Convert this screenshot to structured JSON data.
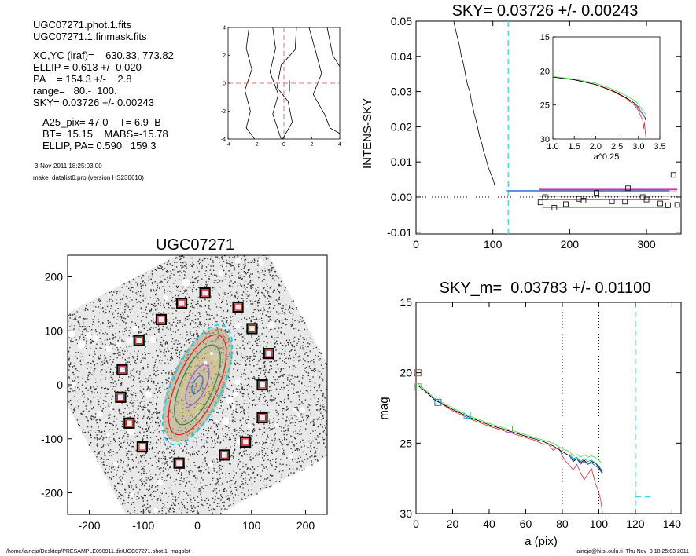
{
  "header": {
    "lines_a": [
      "UGC07271.phot.1.fits",
      "UGC07271.1.finmask.fits"
    ],
    "lines_b": [
      "XC,YC (iraf)=    630.33, 773.82",
      "ELLIP = 0.613 +/- 0.020",
      "PA    = 154.3 +/-    2.8",
      "range=   80.-  100.",
      "SKY= 0.03726 +/- 0.00243"
    ],
    "lines_c": [
      "A25_pix= 47.0    T= 6.9  B",
      "BT=  15.15    MABS=-15.78",
      "ELLIP, PA= 0.590   159.3"
    ],
    "date": "3-Nov-2011 18:25:03.00",
    "program": "make_datalist0.pro (version HS230610)"
  },
  "footer": {
    "left": "/home/laineja/Desktop/PRESAMPLE090911.dir/UGC07271.phot.1_magplot",
    "right": "laineja@hiisi.oulu.fi  Thu Nov  3 18:25:03 2011"
  },
  "chart_data": [
    {
      "type": "line",
      "panel": "center-contour",
      "xlim": [
        -4,
        4
      ],
      "ylim": [
        -4,
        4
      ],
      "x_ticks": [
        -4,
        -2,
        0,
        2,
        4
      ],
      "y_ticks": [
        -4,
        -2,
        0,
        2,
        4
      ],
      "crosshair": [
        0,
        0
      ],
      "center_marker": [
        0.4,
        -0.2
      ],
      "contours": [
        [
          [
            -2.5,
            4
          ],
          [
            -2.7,
            2.5
          ],
          [
            -2.3,
            1
          ],
          [
            -2.8,
            -0.5
          ],
          [
            -2.4,
            -2
          ],
          [
            -2.7,
            -3.2
          ],
          [
            -2.1,
            -4
          ]
        ],
        [
          [
            -0.8,
            4
          ],
          [
            -0.6,
            2.5
          ],
          [
            -1.0,
            0.8
          ],
          [
            -0.4,
            -0.8
          ],
          [
            -0.8,
            -2.2
          ],
          [
            -0.2,
            -4
          ]
        ],
        [
          [
            0.9,
            4
          ],
          [
            0.8,
            2.4
          ],
          [
            -0.2,
            1.3
          ],
          [
            -0.5,
            -0.3
          ],
          [
            0.3,
            -1.3
          ],
          [
            0.6,
            -2.8
          ],
          [
            -0.1,
            -4
          ]
        ],
        [
          [
            1.8,
            4
          ],
          [
            2.3,
            2.2
          ],
          [
            2.7,
            0.7
          ],
          [
            2.1,
            -0.8
          ],
          [
            2.9,
            -2.2
          ],
          [
            3.3,
            -3.2
          ],
          [
            4,
            -3.6
          ]
        ],
        [
          [
            3.1,
            4
          ],
          [
            3.5,
            2.0
          ],
          [
            4,
            1.2
          ]
        ]
      ],
      "colors": {
        "crosshair": "#e87070",
        "contours": "#000000"
      }
    },
    {
      "type": "line",
      "panel": "sky-profile",
      "title": "SKY= 0.03726 +/- 0.00243",
      "xlabel": "",
      "ylabel": "INTENS-SKY",
      "xlim": [
        0,
        345
      ],
      "ylim": [
        -0.0105,
        0.05
      ],
      "x_ticks": [
        0,
        100,
        200,
        300
      ],
      "y_ticks": [
        0.05,
        0.04,
        0.03,
        0.02,
        0.01,
        0.0,
        -0.01
      ],
      "y_tick_labels": [
        "0.05",
        "0.04",
        "0.03",
        "0.02",
        "0.01",
        "0.00",
        "-0.01"
      ],
      "sky_radius": 120,
      "profile": {
        "x": [
          49,
          52,
          55,
          57,
          59,
          61,
          63,
          65,
          67,
          70,
          72,
          74,
          76,
          79,
          81,
          83,
          86,
          88,
          91,
          94,
          97,
          100,
          103
        ],
        "y": [
          0.05,
          0.047,
          0.0445,
          0.0425,
          0.04,
          0.0385,
          0.0365,
          0.034,
          0.032,
          0.03,
          0.0275,
          0.0255,
          0.0235,
          0.021,
          0.019,
          0.017,
          0.015,
          0.013,
          0.011,
          0.0085,
          0.0068,
          0.0052,
          0.003
        ]
      },
      "bands": [
        {
          "color": "#2a6fd6",
          "x": [
            118,
            200,
            330
          ],
          "y": [
            0.0018,
            0.0018,
            0.0018
          ]
        },
        {
          "color": "#22bbdd",
          "x": [
            120,
            340
          ],
          "y": [
            0.0015,
            0.0015
          ]
        },
        {
          "color": "#d35fcf",
          "x": [
            160,
            340
          ],
          "y": [
            0.0024,
            0.0024
          ]
        },
        {
          "color": "#e24040",
          "x": [
            160,
            340
          ],
          "y": [
            0.0021,
            0.0021
          ]
        },
        {
          "color": "#000000",
          "x": [
            160,
            340
          ],
          "y": [
            0.0003,
            0.0003
          ]
        },
        {
          "color": "#00aa00",
          "x": [
            165,
            330
          ],
          "y": [
            -0.0007,
            -0.0007
          ]
        },
        {
          "color": "#55dd55",
          "x": [
            165,
            330
          ],
          "y": [
            -0.003,
            -0.003
          ]
        }
      ],
      "sky_points": {
        "x": [
          162,
          168,
          180,
          195,
          212,
          218,
          235,
          255,
          272,
          276,
          295,
          300,
          318,
          328,
          335,
          340
        ],
        "y": [
          -0.0015,
          0.0,
          -0.003,
          -0.002,
          -0.0005,
          -0.001,
          0.0012,
          -0.0012,
          -0.0013,
          0.0025,
          0.0,
          -0.0007,
          -0.0018,
          -0.0023,
          0.0063,
          -0.0022
        ]
      },
      "inset": {
        "xlabel": "a^0.25",
        "xlim": [
          1.0,
          3.5
        ],
        "ylim": [
          30,
          15
        ],
        "x_ticks": [
          1.0,
          1.5,
          2.0,
          2.5,
          3.0,
          3.5
        ],
        "x_tick_labels": [
          "1.0",
          "1.5",
          "2.0",
          "2.5",
          "3.0",
          "3.5"
        ],
        "y_ticks": [
          15,
          20,
          25,
          30
        ],
        "series": [
          {
            "color": "#e24040",
            "x": [
              1.0,
              1.5,
              2.0,
              2.4,
              2.7,
              2.9,
              3.0,
              3.05,
              3.1,
              3.12,
              3.14,
              3.16,
              3.18
            ],
            "y": [
              20.9,
              21.3,
              22.0,
              23.0,
              24.0,
              25.0,
              25.8,
              26.6,
              27.2,
              28.5,
              27.5,
              29.0,
              30.0
            ]
          },
          {
            "color": "#000000",
            "x": [
              1.0,
              1.5,
              2.0,
              2.4,
              2.7,
              2.9,
              3.0,
              3.05,
              3.1,
              3.15,
              3.17
            ],
            "y": [
              20.9,
              21.3,
              22.0,
              22.9,
              23.9,
              24.7,
              25.3,
              25.9,
              26.3,
              26.8,
              27.2
            ]
          },
          {
            "color": "#55dd55",
            "x": [
              1.0,
              1.5,
              2.0,
              2.4,
              2.7,
              2.9,
              3.0,
              3.05,
              3.1,
              3.15,
              3.17
            ],
            "y": [
              20.8,
              21.2,
              21.8,
              22.7,
              23.6,
              24.3,
              24.9,
              25.4,
              25.8,
              26.2,
              26.4
            ]
          },
          {
            "color": "#1aa3a3",
            "x": [
              2.9,
              3.0,
              3.05,
              3.1,
              3.15
            ],
            "y": [
              24.8,
              25.5,
              26.0,
              26.4,
              26.9
            ]
          },
          {
            "color": "#d35fcf",
            "x": [
              2.95,
              3.02,
              3.08,
              3.12,
              3.15
            ],
            "y": [
              25.0,
              25.6,
              26.1,
              26.5,
              26.8
            ]
          }
        ]
      }
    },
    {
      "type": "scatter",
      "panel": "galaxy-image",
      "title": "UGC07271",
      "xlim": [
        -240,
        240
      ],
      "ylim": [
        -240,
        240
      ],
      "x_ticks": [
        -200,
        -100,
        0,
        100,
        200
      ],
      "y_ticks": [
        200,
        100,
        0,
        -100,
        -200
      ],
      "sky_boxes": [
        [
          14,
          170
        ],
        [
          -29,
          151
        ],
        [
          75,
          144
        ],
        [
          -67,
          121
        ],
        [
          101,
          104
        ],
        [
          -108,
          82
        ],
        [
          132,
          58
        ],
        [
          -139,
          28
        ],
        [
          120,
          0
        ],
        [
          -142,
          -23
        ],
        [
          120,
          -61
        ],
        [
          -126,
          -71
        ],
        [
          89,
          -106
        ],
        [
          -102,
          -115
        ],
        [
          50,
          -130
        ],
        [
          -34,
          -145
        ]
      ],
      "ellipses": [
        {
          "color": "#e01f1f",
          "a": 100,
          "b": 38,
          "pa": 154.3
        },
        {
          "color": "#22ccee",
          "a": 120,
          "b": 46,
          "pa": 154.3
        },
        {
          "color": "#2b8c2b",
          "a": 80,
          "b": 30,
          "pa": 154.3
        },
        {
          "color": "#e7d25a",
          "a": 60,
          "b": 23,
          "pa": 154.3
        },
        {
          "color": "#9b5ec9",
          "a": 40,
          "b": 16,
          "pa": 154.3
        },
        {
          "color": "#2a6fd6",
          "a": 18,
          "b": 8,
          "pa": 154.3
        }
      ]
    },
    {
      "type": "line",
      "panel": "mag-profile",
      "title": "SKY_m=  0.03783 +/- 0.01100",
      "xlabel": "a (pix)",
      "ylabel": "mag",
      "xlim": [
        0,
        145
      ],
      "ylim": [
        30,
        15
      ],
      "x_ticks": [
        0,
        20,
        40,
        60,
        80,
        100,
        120,
        140
      ],
      "y_ticks": [
        15,
        20,
        25,
        30
      ],
      "range_lines": [
        80,
        100
      ],
      "sky_radius": 120,
      "sky_mag_segment": {
        "x": [
          120,
          130
        ],
        "y": [
          28.8,
          28.8
        ]
      },
      "markers": [
        {
          "color": "#e24040",
          "x": 1,
          "y": 20.0
        },
        {
          "color": "#55dd55",
          "x": 1,
          "y": 21.0
        },
        {
          "color": "#2a6fd6",
          "x": 12,
          "y": 22.1
        },
        {
          "color": "#22bbdd",
          "x": 28,
          "y": 23.0
        },
        {
          "color": "#d35fcf",
          "x": 51,
          "y": 24.0
        }
      ],
      "series": [
        {
          "color": "#e24040",
          "x": [
            1,
            5,
            10,
            20,
            30,
            40,
            50,
            60,
            65,
            70,
            72,
            75,
            78,
            80,
            82,
            84,
            86,
            88,
            90,
            92,
            94,
            96,
            98,
            100,
            101,
            102
          ],
          "y": [
            20.9,
            21.3,
            21.9,
            22.7,
            23.3,
            23.8,
            24.2,
            24.6,
            24.8,
            25.1,
            25.0,
            25.5,
            25.3,
            25.9,
            26.3,
            26.6,
            26.9,
            26.5,
            27.1,
            27.6,
            27.2,
            26.8,
            27.8,
            28.5,
            29.0,
            30.0
          ]
        },
        {
          "color": "#000000",
          "x": [
            1,
            5,
            10,
            20,
            30,
            40,
            50,
            60,
            65,
            70,
            75,
            80,
            84,
            86,
            88,
            90,
            92,
            94,
            96,
            98,
            100,
            102
          ],
          "y": [
            20.9,
            21.3,
            21.9,
            22.6,
            23.2,
            23.7,
            24.1,
            24.5,
            24.7,
            24.9,
            25.2,
            25.6,
            25.9,
            26.3,
            26.1,
            26.4,
            26.2,
            26.5,
            26.3,
            26.4,
            26.7,
            27.1
          ]
        },
        {
          "color": "#55dd55",
          "x": [
            1,
            5,
            10,
            20,
            30,
            40,
            50,
            60,
            65,
            70,
            75,
            80,
            84,
            86,
            88,
            90,
            92,
            94,
            96,
            98,
            100,
            102
          ],
          "y": [
            20.8,
            21.2,
            21.8,
            22.5,
            23.1,
            23.6,
            24.0,
            24.4,
            24.6,
            24.8,
            25.0,
            25.4,
            25.6,
            25.9,
            25.8,
            26.0,
            25.8,
            26.0,
            25.9,
            26.0,
            26.2,
            26.5
          ]
        },
        {
          "color": "#1aa3a3",
          "x": [
            84,
            86,
            88,
            90,
            92,
            94,
            96,
            98,
            100,
            102
          ],
          "y": [
            25.8,
            26.1,
            26.0,
            26.3,
            26.1,
            26.3,
            26.2,
            26.4,
            26.6,
            27.0
          ]
        },
        {
          "color": "#2a6fd6",
          "x": [
            84,
            86,
            88,
            90,
            92,
            94,
            96,
            98,
            100,
            102
          ],
          "y": [
            25.9,
            26.2,
            26.1,
            26.5,
            26.3,
            26.5,
            26.4,
            26.6,
            26.8,
            27.2
          ]
        }
      ]
    }
  ]
}
